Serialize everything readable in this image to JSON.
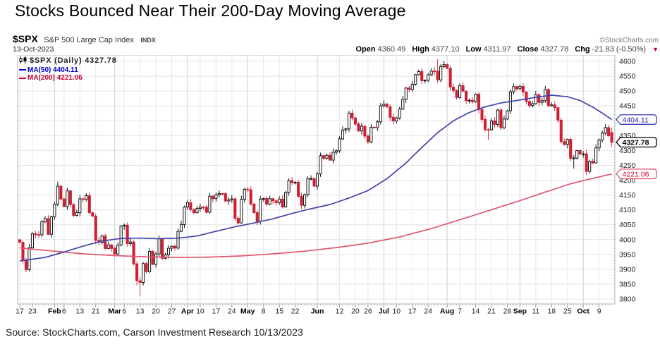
{
  "page": {
    "title": "Stocks Bounced Near Their 200-Day Moving Average",
    "source_line": "Source: StockCharts.com, Carson Investment Research 10/13/2023"
  },
  "chart_header": {
    "symbol": "$SPX",
    "name": "S&P 500 Large Cap Index",
    "exchange": "INDX",
    "date": "13-Oct-2023",
    "copyright": "©StockCharts.com",
    "quote": [
      {
        "label": "Open",
        "value": "4360.49"
      },
      {
        "label": "High",
        "value": "4377.10"
      },
      {
        "label": "Low",
        "value": "4311.97"
      },
      {
        "label": "Close",
        "value": "4327.78"
      },
      {
        "label": "Chg",
        "value": "-21.83 (-0.50%)"
      }
    ],
    "chg_arrow": "▼"
  },
  "legend": {
    "line1": "$SPX (Daily) 4327.78",
    "line2": "MA(50) 4404.11",
    "line3": "MA(200) 4221.06",
    "ma50_text_color": "#0000cc",
    "ma200_text_color": "#cc0033"
  },
  "chart_data": {
    "type": "candlestick",
    "title": "$SPX daily candlesticks with 50-day and 200-day moving averages",
    "x_range": "Jan 17, 2023 - Oct 13, 2023",
    "y_axis": {
      "min": 3800,
      "max": 4600,
      "step": 50,
      "hide_label_at": 4400
    },
    "up_color": "#000000",
    "down_color": "#cc2035",
    "first_open": 3999.28,
    "closes": [
      3990.97,
      3928.86,
      3898.85,
      3972.61,
      4019.81,
      4016.95,
      4016.22,
      4060.43,
      4070.56,
      4017.77,
      4076.6,
      4119.21,
      4179.76,
      4136.48,
      4111.08,
      4164.0,
      4117.86,
      4081.5,
      4090.46,
      4137.29,
      4136.13,
      4147.6,
      4090.41,
      4079.09,
      3997.34,
      3991.05,
      4012.32,
      3970.04,
      3982.24,
      3970.15,
      3951.39,
      3981.35,
      4045.64,
      4048.42,
      3986.37,
      3992.01,
      3918.32,
      3861.59,
      3855.76,
      3919.29,
      3891.93,
      3960.28,
      3916.64,
      3951.57,
      4002.87,
      3936.97,
      3948.72,
      3970.99,
      3977.53,
      3971.27,
      4027.81,
      4050.83,
      4109.31,
      4124.51,
      4100.6,
      4090.38,
      4105.02,
      4109.11,
      4108.94,
      4091.95,
      4146.22,
      4137.64,
      4151.32,
      4154.87,
      4154.52,
      4129.79,
      4133.52,
      4137.04,
      4071.63,
      4055.99,
      4135.35,
      4169.48,
      4167.87,
      4119.58,
      4090.75,
      4061.22,
      4136.25,
      4138.12,
      4119.17,
      4137.64,
      4130.62,
      4124.08,
      4136.28,
      4109.9,
      4158.77,
      4198.05,
      4191.98,
      4192.63,
      4145.58,
      4115.24,
      4151.28,
      4205.45,
      4205.52,
      4179.83,
      4221.02,
      4282.37,
      4273.79,
      4283.85,
      4267.52,
      4293.93,
      4298.86,
      4338.93,
      4369.01,
      4372.59,
      4425.84,
      4409.59,
      4388.71,
      4365.69,
      4381.89,
      4348.33,
      4328.82,
      4378.41,
      4376.86,
      4396.44,
      4450.38,
      4455.59,
      4446.82,
      4411.59,
      4398.95,
      4409.53,
      4439.26,
      4472.16,
      4510.04,
      4505.42,
      4522.79,
      4554.98,
      4565.72,
      4534.87,
      4536.34,
      4554.64,
      4567.46,
      4566.75,
      4537.41,
      4582.23,
      4588.96,
      4576.73,
      4513.39,
      4501.89,
      4478.03,
      4518.44,
      4499.38,
      4467.71,
      4468.83,
      4464.05,
      4489.72,
      4437.86,
      4404.33,
      4370.36,
      4369.71,
      4399.77,
      4387.55,
      4436.01,
      4376.31,
      4405.71,
      4433.31,
      4497.63,
      4514.87,
      4507.66,
      4515.77,
      4496.83,
      4465.48,
      4451.14,
      4457.49,
      4487.46,
      4461.9,
      4467.44,
      4505.1,
      4450.32,
      4453.53,
      4443.95,
      4402.2,
      4330.0,
      4320.06,
      4337.44,
      4273.53,
      4274.51,
      4299.7,
      4288.05,
      4288.39,
      4229.45,
      4263.75,
      4258.19,
      4308.5,
      4335.66,
      4358.24,
      4376.95,
      4349.61,
      4327.78
    ],
    "open_overrides": {
      "187": 4360.49
    },
    "high_overrides": {
      "12": 4195.44,
      "132": 4607.07,
      "186": 4385.46,
      "187": 4377.1
    },
    "low_overrides": {
      "37": 3846.32,
      "38": 3808.86,
      "148": 4335.31,
      "175": 4238.63,
      "179": 4216.45,
      "187": 4311.97
    },
    "ma50": {
      "name": "MA(50)",
      "last": 4404.11,
      "color": "#4343ae",
      "points": [
        [
          0,
          3928
        ],
        [
          8,
          3940
        ],
        [
          14,
          3958
        ],
        [
          20,
          3978
        ],
        [
          26,
          3995
        ],
        [
          32,
          4004
        ],
        [
          38,
          4005
        ],
        [
          44,
          4003
        ],
        [
          50,
          4005
        ],
        [
          56,
          4012
        ],
        [
          62,
          4028
        ],
        [
          68,
          4043
        ],
        [
          74,
          4056
        ],
        [
          80,
          4070
        ],
        [
          86,
          4088
        ],
        [
          92,
          4104
        ],
        [
          98,
          4118
        ],
        [
          104,
          4140
        ],
        [
          110,
          4165
        ],
        [
          116,
          4205
        ],
        [
          122,
          4258
        ],
        [
          127,
          4310
        ],
        [
          132,
          4360
        ],
        [
          137,
          4400
        ],
        [
          142,
          4428
        ],
        [
          147,
          4447
        ],
        [
          152,
          4460
        ],
        [
          158,
          4470
        ],
        [
          163,
          4479
        ],
        [
          168,
          4486
        ],
        [
          173,
          4481
        ],
        [
          177,
          4468
        ],
        [
          181,
          4446
        ],
        [
          184,
          4426
        ],
        [
          187,
          4404.11
        ]
      ]
    },
    "ma200": {
      "name": "MA(200)",
      "last": 4221.06,
      "color": "#e0556f",
      "points": [
        [
          0,
          3972
        ],
        [
          10,
          3962
        ],
        [
          20,
          3952
        ],
        [
          30,
          3946
        ],
        [
          40,
          3942
        ],
        [
          50,
          3940
        ],
        [
          60,
          3941
        ],
        [
          70,
          3945
        ],
        [
          80,
          3952
        ],
        [
          90,
          3961
        ],
        [
          100,
          3973
        ],
        [
          110,
          3988
        ],
        [
          120,
          4009
        ],
        [
          130,
          4037
        ],
        [
          140,
          4070
        ],
        [
          150,
          4104
        ],
        [
          158,
          4131
        ],
        [
          166,
          4160
        ],
        [
          174,
          4188
        ],
        [
          181,
          4206
        ],
        [
          187,
          4221.06
        ]
      ]
    },
    "x_ticks": [
      [
        0,
        "17",
        0
      ],
      [
        4,
        "23",
        0
      ],
      [
        11,
        "Feb",
        1
      ],
      [
        14,
        "6",
        0
      ],
      [
        19,
        "13",
        0
      ],
      [
        24,
        "21",
        0
      ],
      [
        30,
        "Mar",
        1
      ],
      [
        33,
        "6",
        0
      ],
      [
        38,
        "13",
        0
      ],
      [
        43,
        "20",
        0
      ],
      [
        48,
        "27",
        0
      ],
      [
        53,
        "Apr",
        1
      ],
      [
        57,
        "10",
        0
      ],
      [
        62,
        "17",
        0
      ],
      [
        67,
        "24",
        0
      ],
      [
        72,
        "May",
        1
      ],
      [
        77,
        "8",
        0
      ],
      [
        82,
        "15",
        0
      ],
      [
        87,
        "22",
        0
      ],
      [
        94,
        "Jun",
        1
      ],
      [
        101,
        "12",
        0
      ],
      [
        106,
        "20",
        0
      ],
      [
        110,
        "26",
        0
      ],
      [
        115,
        "Jul",
        1
      ],
      [
        119,
        "10",
        0
      ],
      [
        124,
        "17",
        0
      ],
      [
        129,
        "24",
        0
      ],
      [
        135,
        "Aug",
        1
      ],
      [
        139,
        "7",
        0
      ],
      [
        144,
        "14",
        0
      ],
      [
        149,
        "21",
        0
      ],
      [
        154,
        "28",
        0
      ],
      [
        158,
        "Sep",
        1
      ],
      [
        163,
        "11",
        0
      ],
      [
        168,
        "18",
        0
      ],
      [
        173,
        "25",
        0
      ],
      [
        178,
        "Oct",
        1
      ],
      [
        183,
        "9",
        0
      ]
    ],
    "price_tags": [
      {
        "text": "4404.11",
        "price": 4404.11,
        "stroke": "#3b3bb8",
        "text_color": "#2222bb",
        "bold": false
      },
      {
        "text": "4327.78",
        "price": 4327.78,
        "stroke": "#000000",
        "text_color": "#000000",
        "bold": true
      },
      {
        "text": "4221.06",
        "price": 4221.06,
        "stroke": "#e0556f",
        "text_color": "#cc0033",
        "bold": false
      }
    ]
  }
}
